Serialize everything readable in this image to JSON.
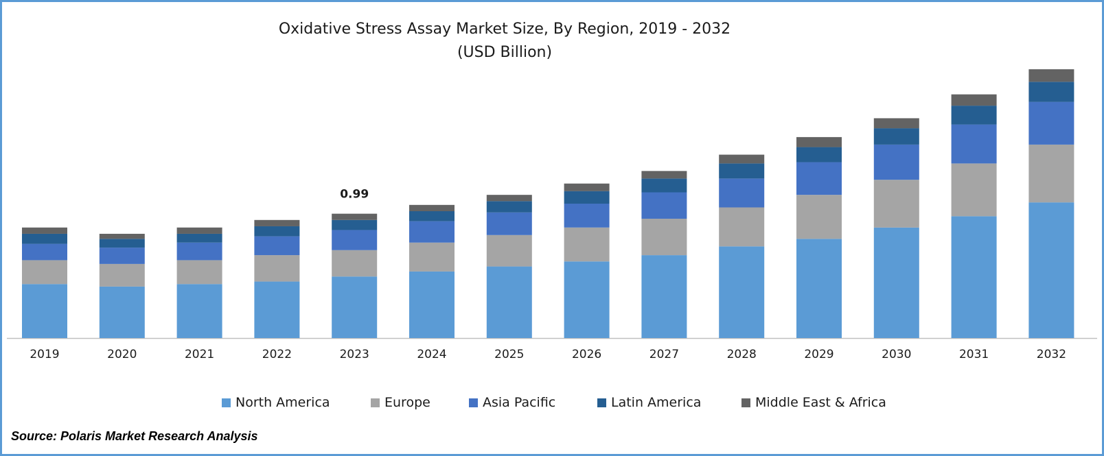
{
  "chart_data": {
    "type": "bar",
    "stacked": true,
    "title": "Oxidative Stress Assay Market Size, By Region, 2019 - 2032",
    "subtitle": "(USD Billion)",
    "xlabel": "",
    "ylabel": "",
    "ylim": [
      0,
      2.2
    ],
    "grid": false,
    "legend_position": "bottom",
    "categories": [
      "2019",
      "2020",
      "2021",
      "2022",
      "2023",
      "2024",
      "2025",
      "2026",
      "2027",
      "2028",
      "2029",
      "2030",
      "2031",
      "2032"
    ],
    "series": [
      {
        "name": "North America",
        "color": "#5b9bd5",
        "values": [
          0.43,
          0.41,
          0.43,
          0.45,
          0.49,
          0.53,
          0.57,
          0.61,
          0.66,
          0.73,
          0.79,
          0.88,
          0.97,
          1.08
        ]
      },
      {
        "name": "Europe",
        "color": "#a5a5a5",
        "values": [
          0.19,
          0.18,
          0.19,
          0.21,
          0.21,
          0.23,
          0.25,
          0.27,
          0.29,
          0.31,
          0.35,
          0.38,
          0.42,
          0.46
        ]
      },
      {
        "name": "Asia Pacific",
        "color": "#4472c4",
        "values": [
          0.13,
          0.13,
          0.14,
          0.15,
          0.16,
          0.17,
          0.18,
          0.19,
          0.21,
          0.23,
          0.26,
          0.28,
          0.31,
          0.34
        ]
      },
      {
        "name": "Latin America",
        "color": "#255e91",
        "values": [
          0.08,
          0.07,
          0.07,
          0.08,
          0.08,
          0.08,
          0.09,
          0.1,
          0.11,
          0.12,
          0.12,
          0.13,
          0.15,
          0.16
        ]
      },
      {
        "name": "Middle East & Africa",
        "color": "#636363",
        "values": [
          0.05,
          0.04,
          0.05,
          0.05,
          0.05,
          0.05,
          0.05,
          0.06,
          0.06,
          0.07,
          0.08,
          0.08,
          0.09,
          0.1
        ]
      }
    ],
    "annotations": [
      {
        "category": "2023",
        "label": "0.99"
      }
    ]
  },
  "source": "Source: Polaris Market Research Analysis"
}
